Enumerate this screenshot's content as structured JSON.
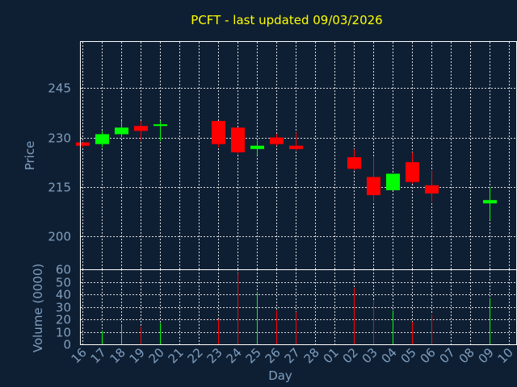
{
  "chart_data": [
    {
      "type": "candlestick",
      "title": "PCFT - last updated 09/03/2026",
      "xlabel": "Day",
      "ylabel": "Price",
      "ylim": [
        190,
        259
      ],
      "yticks": [
        200,
        215,
        230,
        245
      ],
      "grid": true,
      "x": [
        "16",
        "17",
        "18",
        "19",
        "20",
        "21",
        "22",
        "23",
        "24",
        "25",
        "26",
        "27",
        "28",
        "01",
        "02",
        "03",
        "04",
        "05",
        "06",
        "07",
        "08",
        "09",
        "10"
      ],
      "candles": [
        {
          "day": "16",
          "open": 228.5,
          "close": 227.5,
          "high": 228.5,
          "low": 227.0,
          "color": "#ff0000"
        },
        {
          "day": "17",
          "open": 228.0,
          "close": 231.0,
          "high": 232.0,
          "low": 227.0,
          "color": "#00ff00"
        },
        {
          "day": "18",
          "open": 231.0,
          "close": 233.0,
          "high": 235.0,
          "low": 230.0,
          "color": "#00ff00"
        },
        {
          "day": "19",
          "open": 233.5,
          "close": 232.0,
          "high": 235.0,
          "low": 229.0,
          "color": "#ff0000"
        },
        {
          "day": "20",
          "open": 233.5,
          "close": 234.0,
          "high": 235.0,
          "low": 229.0,
          "color": "#00ff00"
        },
        {
          "day": "23",
          "open": 235.0,
          "close": 228.0,
          "high": 235.0,
          "low": 227.0,
          "color": "#ff0000"
        },
        {
          "day": "24",
          "open": 233.0,
          "close": 225.5,
          "high": 233.0,
          "low": 225.0,
          "color": "#ff0000"
        },
        {
          "day": "25",
          "open": 226.5,
          "close": 227.5,
          "high": 229.0,
          "low": 224.5,
          "color": "#00ff00"
        },
        {
          "day": "26",
          "open": 230.0,
          "close": 228.0,
          "high": 231.0,
          "low": 227.5,
          "color": "#ff0000"
        },
        {
          "day": "27",
          "open": 227.5,
          "close": 226.5,
          "high": 231.5,
          "low": 226.0,
          "color": "#ff0000"
        },
        {
          "day": "02",
          "open": 224.0,
          "close": 220.5,
          "high": 226.5,
          "low": 220.0,
          "color": "#ff0000"
        },
        {
          "day": "03",
          "open": 218.0,
          "close": 212.5,
          "high": 224.0,
          "low": 210.5,
          "color": "#ff0000"
        },
        {
          "day": "04",
          "open": 214.0,
          "close": 219.0,
          "high": 219.0,
          "low": 214.0,
          "color": "#00ff00"
        },
        {
          "day": "05",
          "open": 222.5,
          "close": 216.5,
          "high": 225.5,
          "low": 216.0,
          "color": "#ff0000"
        },
        {
          "day": "06",
          "open": 215.5,
          "close": 213.0,
          "high": 220.0,
          "low": 210.5,
          "color": "#ff0000"
        },
        {
          "day": "09",
          "open": 210.0,
          "close": 211.0,
          "high": 215.0,
          "low": 205.0,
          "color": "#00ff00"
        }
      ]
    },
    {
      "type": "bar",
      "xlabel": "Day",
      "ylabel": "Volume (0000)",
      "ylim": [
        0,
        60
      ],
      "yticks": [
        0,
        10,
        20,
        30,
        40,
        50,
        60
      ],
      "grid": true,
      "categories": [
        "16",
        "17",
        "18",
        "19",
        "20",
        "21",
        "22",
        "23",
        "24",
        "25",
        "26",
        "27",
        "28",
        "01",
        "02",
        "03",
        "04",
        "05",
        "06",
        "07",
        "08",
        "09",
        "10"
      ],
      "values": [
        0,
        11,
        16,
        14,
        17,
        0,
        0,
        20,
        57,
        42,
        27,
        26,
        0,
        0,
        45,
        35,
        27,
        18,
        24,
        0,
        0,
        37,
        0
      ],
      "colors": [
        "#ff0000",
        "#00ff00",
        "#00ff00",
        "#ff0000",
        "#00ff00",
        "#ff0000",
        "#ff0000",
        "#ff0000",
        "#ff0000",
        "#00ff00",
        "#ff0000",
        "#ff0000",
        "#ff0000",
        "#ff0000",
        "#ff0000",
        "#ff0000",
        "#00ff00",
        "#ff0000",
        "#ff0000",
        "#ff0000",
        "#ff0000",
        "#00ff00",
        "#ff0000"
      ]
    }
  ]
}
